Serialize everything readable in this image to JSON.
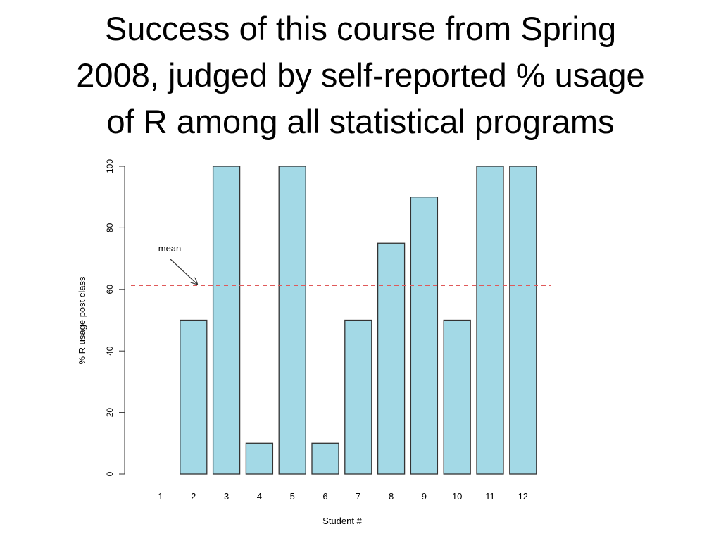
{
  "slide": {
    "title_lines": [
      "Success of this course from Spring",
      "2008, judged by self-reported % usage",
      "of R among all statistical programs"
    ]
  },
  "chart_data": {
    "type": "bar",
    "title": "",
    "xlabel": "Student #",
    "ylabel": "% R usage post class",
    "categories": [
      "1",
      "2",
      "3",
      "4",
      "5",
      "6",
      "7",
      "8",
      "9",
      "10",
      "11",
      "12"
    ],
    "values": [
      0,
      50,
      100,
      10,
      100,
      10,
      50,
      75,
      90,
      50,
      100,
      100
    ],
    "ylim": [
      0,
      100
    ],
    "yticks": [
      0,
      20,
      40,
      60,
      80,
      100
    ],
    "grid": false,
    "legend": "none",
    "bar_color": "#a3d9e6",
    "bar_edge_color": "#333333",
    "mean_line": {
      "value": 61.25,
      "color": "#e05a5a",
      "style": "dashed",
      "label": "mean"
    }
  }
}
